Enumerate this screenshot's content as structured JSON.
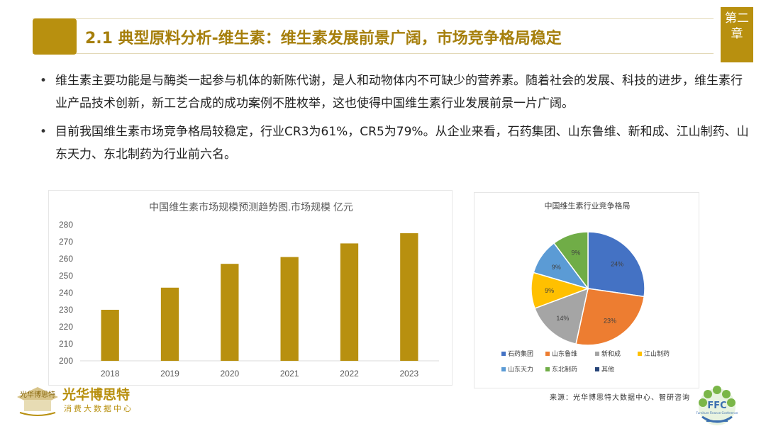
{
  "chapter": "第二章",
  "title": "2.1 典型原料分析-维生素：维生素发展前景广阔，市场竞争格局稳定",
  "bullets": [
    "维生素主要功能是与酶类一起参与机体的新陈代谢，是人和动物体内不可缺少的营养素。随着社会的发展、科技的进步，维生素行业产品技术创新，新工艺合成的成功案例不胜枚举，这也使得中国维生素行业发展前景一片广阔。",
    "目前我国维生素市场竞争格局较稳定，行业CR3为61%，CR5为79%。从企业来看，石药集团、山东鲁维、新和成、江山制药、山东天力、东北制药为行业前六名。"
  ],
  "source": "来源：光华博思特大数据中心、智研咨询",
  "logo_left": {
    "name": "光华博思特",
    "sub": "消费大数据中心",
    "emblem_text": "光华博思特"
  },
  "logo_right": {
    "text": "FFC",
    "sub": "Furniture Finance Conference"
  },
  "colors": {
    "gold": "#b8900f",
    "title": "#a67f0c"
  },
  "chart_data": [
    {
      "type": "bar",
      "title": "中国维生素市场规模预测趋势图.市场规模 亿元",
      "categories": [
        "2018",
        "2019",
        "2020",
        "2021",
        "2022",
        "2023"
      ],
      "values": [
        230,
        243,
        257,
        261,
        269,
        275
      ],
      "ylim": [
        200,
        280
      ],
      "yticks": [
        200,
        210,
        220,
        230,
        240,
        250,
        260,
        270,
        280
      ],
      "grid": false,
      "color": "#b8900f"
    },
    {
      "type": "pie",
      "title": "中国维生素行业竞争格局",
      "legend_position": "bottom",
      "slices": [
        {
          "label": "石药集团",
          "value": 24,
          "display": "24%",
          "color": "#4472c4"
        },
        {
          "label": "山东鲁维",
          "value": 23,
          "display": "23%",
          "color": "#ed7d31"
        },
        {
          "label": "新和成",
          "value": 14,
          "display": "14%",
          "color": "#a5a5a5"
        },
        {
          "label": "江山制药",
          "value": 9,
          "display": "9%",
          "color": "#ffc000"
        },
        {
          "label": "山东天力",
          "value": 9,
          "display": "9%",
          "color": "#5b9bd5"
        },
        {
          "label": "东北制药",
          "value": 9,
          "display": "9%",
          "color": "#70ad47"
        },
        {
          "label": "其他",
          "value": 0,
          "display": "",
          "color": "#264478"
        }
      ]
    }
  ]
}
